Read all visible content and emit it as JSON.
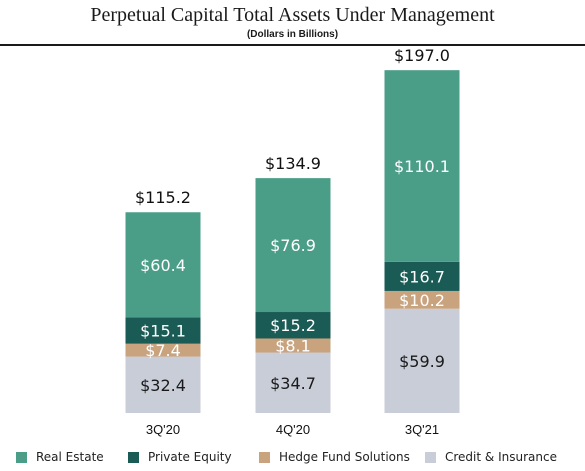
{
  "title": "Perpetual Capital Total Assets Under Management",
  "subtitle": "(Dollars in Billions)",
  "chart_data": {
    "type": "bar",
    "stacked": true,
    "categories": [
      "3Q'20",
      "4Q'20",
      "3Q'21"
    ],
    "series": [
      {
        "name": "Credit & Insurance",
        "color": "#c8cdd8",
        "labelColor": "#1a1a1a",
        "values": [
          32.4,
          34.7,
          59.9
        ],
        "labels": [
          "$32.4",
          "$34.7",
          "$59.9"
        ]
      },
      {
        "name": "Hedge Fund Solutions",
        "color": "#c9a27e",
        "labelColor": "#ffffff",
        "values": [
          7.4,
          8.1,
          10.2
        ],
        "labels": [
          "$7.4",
          "$8.1",
          "$10.2"
        ]
      },
      {
        "name": "Private Equity",
        "color": "#1a5b55",
        "labelColor": "#ffffff",
        "values": [
          15.1,
          15.2,
          16.7
        ],
        "labels": [
          "$15.1",
          "$15.2",
          "$16.7"
        ]
      },
      {
        "name": "Real Estate",
        "color": "#4a9e87",
        "labelColor": "#ffffff",
        "values": [
          60.4,
          76.9,
          110.1
        ],
        "labels": [
          "$60.4",
          "$76.9",
          "$110.1"
        ]
      }
    ],
    "totals": [
      "$115.2",
      "$134.9",
      "$197.0"
    ],
    "legend_order": [
      "Real Estate",
      "Private Equity",
      "Hedge Fund Solutions",
      "Credit & Insurance"
    ],
    "legend_position": "bottom",
    "grid": false,
    "axes_visible": false,
    "ylim": [
      0,
      197
    ]
  }
}
